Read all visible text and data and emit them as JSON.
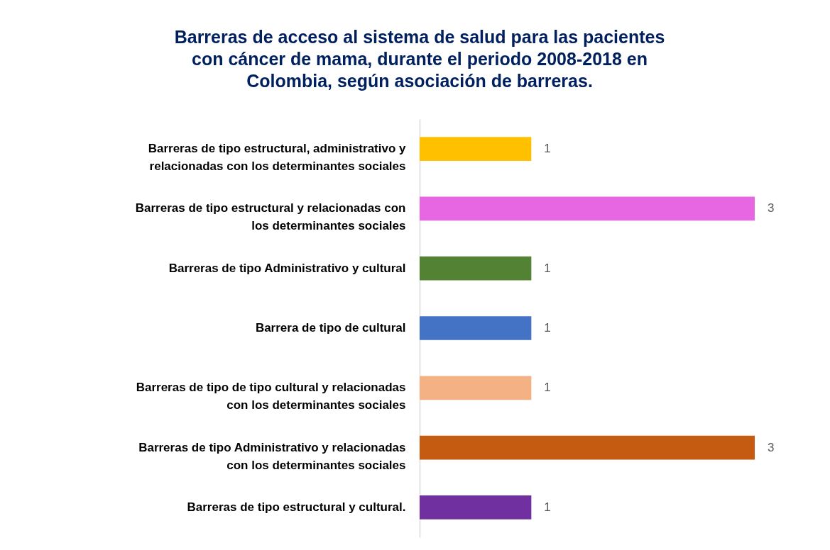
{
  "chart_data": {
    "type": "bar",
    "orientation": "horizontal",
    "title": "Barreras de acceso al sistema de salud para las pacientes con cáncer de mama, durante el periodo 2008-2018 en Colombia, según asociación de barreras.",
    "categories": [
      "Barreras de tipo estructural, administrativo y relacionadas con los determinantes sociales",
      "Barreras de tipo estructural y relacionadas con los determinantes sociales",
      "Barreras de tipo Administrativo y cultural",
      "Barrera de tipo de cultural ",
      "Barreras de tipo de tipo cultural y relacionadas con los determinantes sociales",
      "Barreras de tipo Administrativo y relacionadas con los determinantes sociales",
      "Barreras de tipo estructural y cultural."
    ],
    "values": [
      1,
      3,
      1,
      1,
      1,
      3,
      1
    ],
    "colors": [
      "#ffc000",
      "#e667e1",
      "#548235",
      "#4472c4",
      "#f4b183",
      "#c55a11",
      "#7030a0"
    ],
    "data_labels": true
  }
}
